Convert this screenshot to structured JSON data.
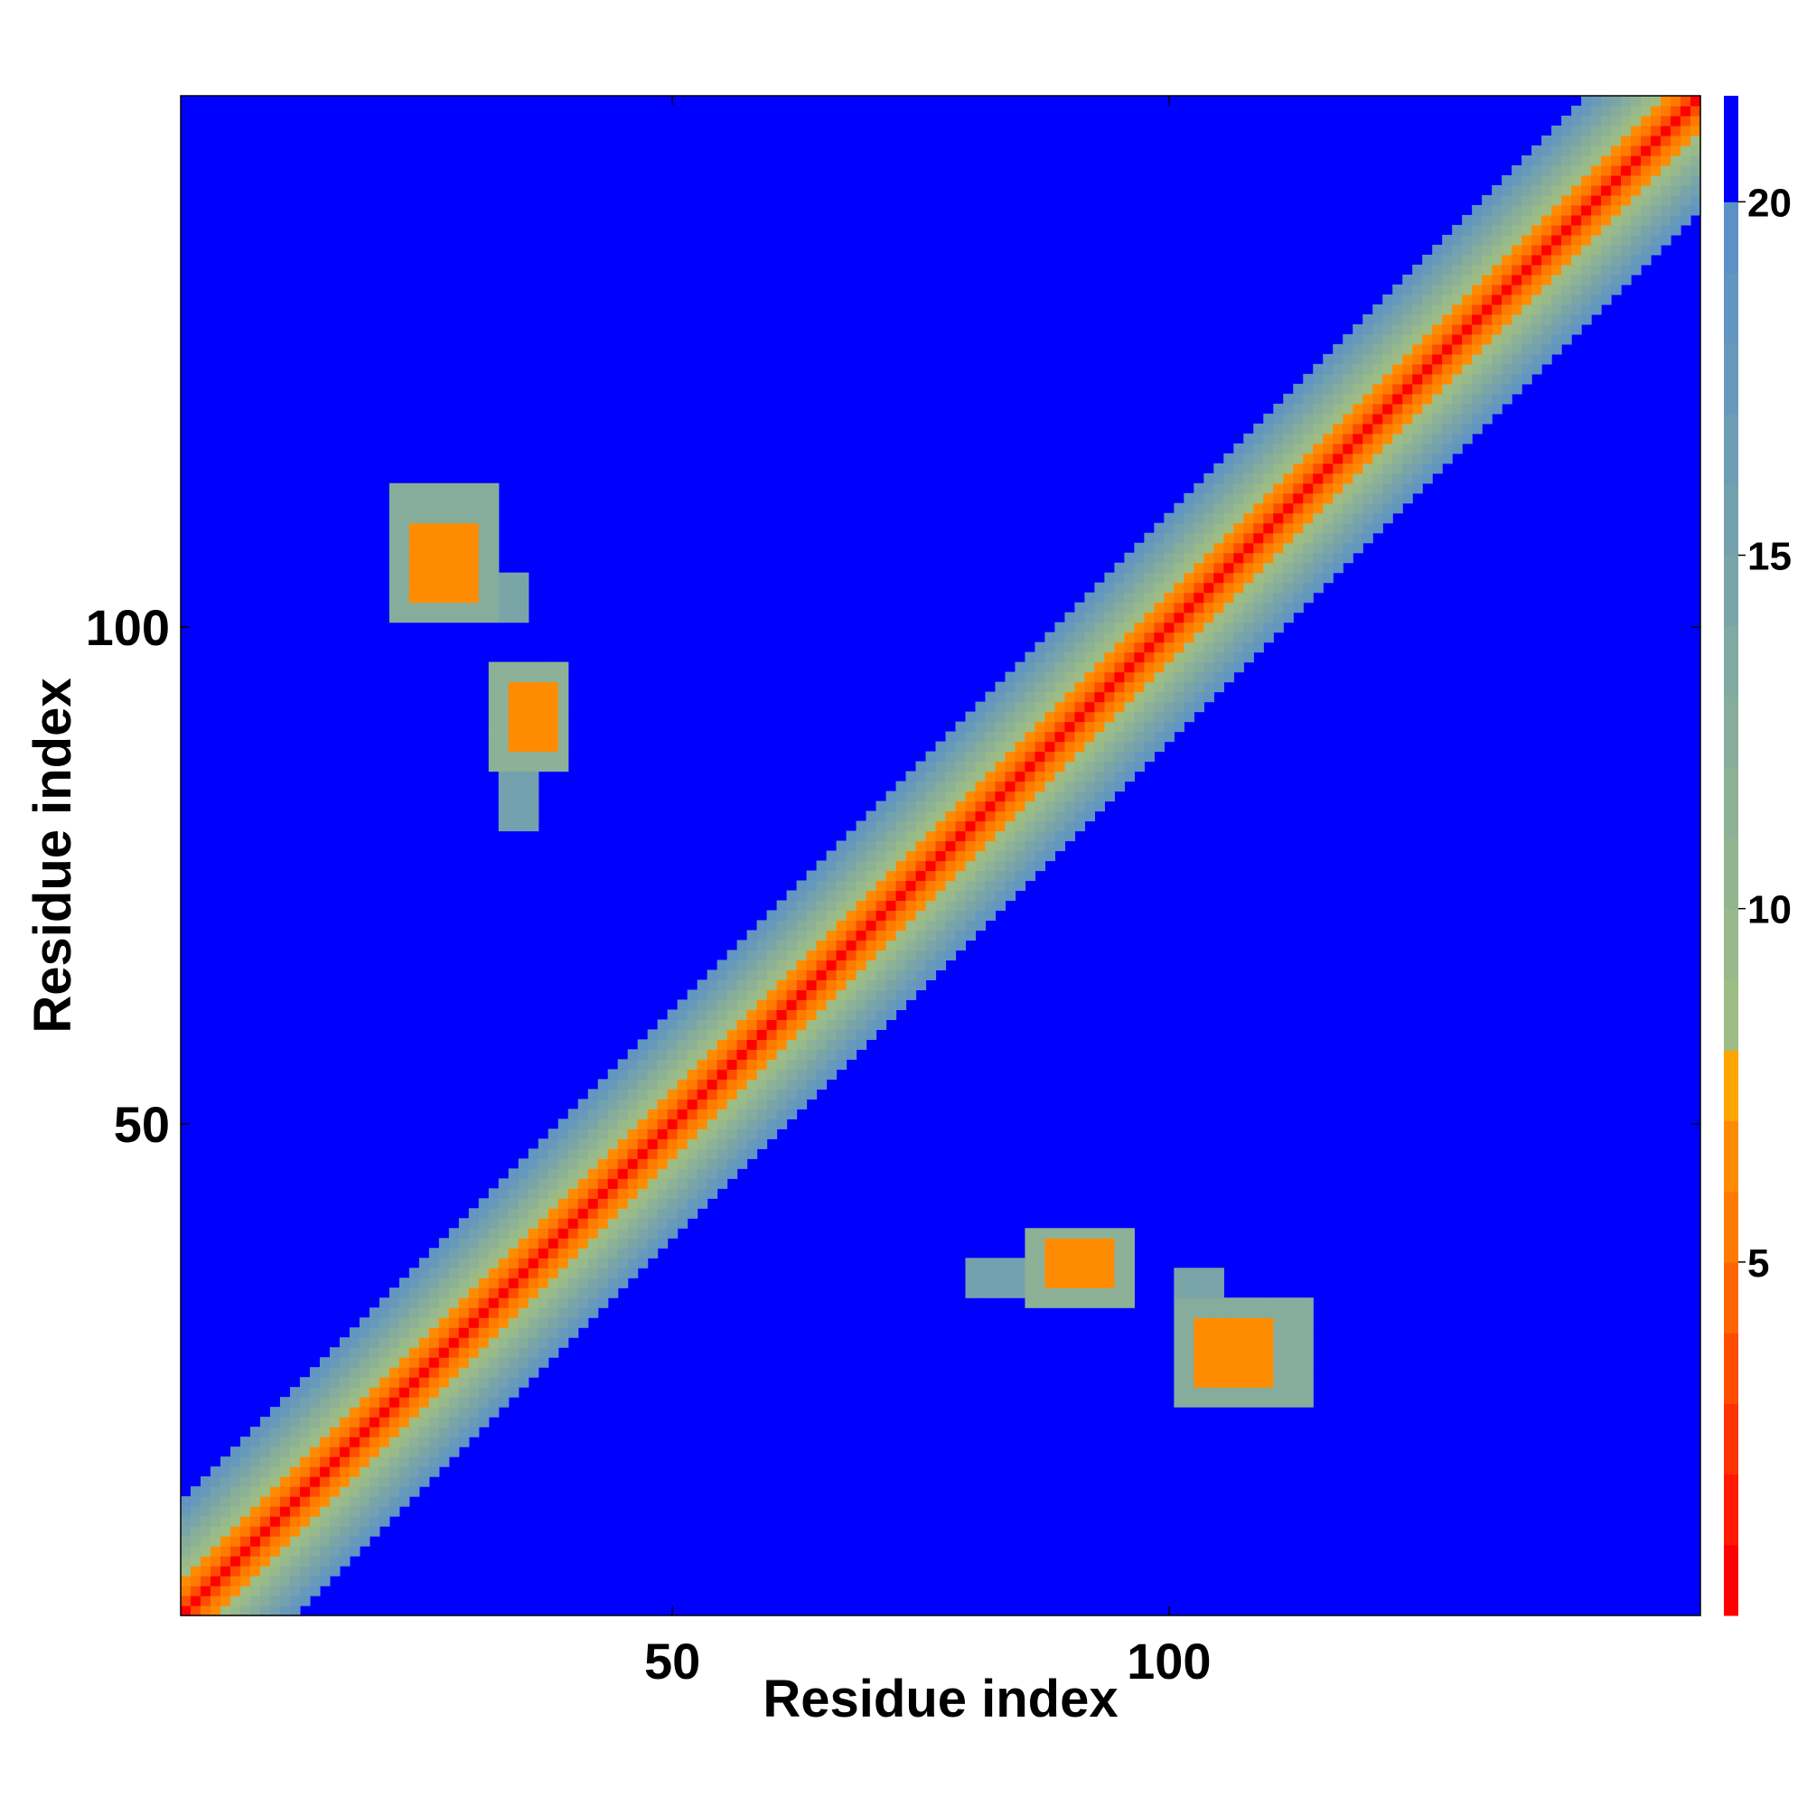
{
  "chart_data": {
    "type": "heatmap",
    "title": "",
    "xlabel": "Residue index",
    "ylabel": "Residue index",
    "n_residues": 153,
    "xlim": [
      1,
      153
    ],
    "ylim": [
      1,
      153
    ],
    "x_ticks": [
      50,
      100
    ],
    "y_ticks": [
      50,
      100
    ],
    "colorbar": {
      "ticks": [
        5,
        10,
        15,
        20
      ],
      "range": [
        0,
        21.5
      ],
      "levels": [
        {
          "max": 1,
          "color": "#ff0000"
        },
        {
          "max": 2,
          "color": "#ff1a00"
        },
        {
          "max": 3,
          "color": "#ff3300"
        },
        {
          "max": 4,
          "color": "#ff4d00"
        },
        {
          "max": 5,
          "color": "#ff6600"
        },
        {
          "max": 6,
          "color": "#ff7a00"
        },
        {
          "max": 7,
          "color": "#ff8c00"
        },
        {
          "max": 8,
          "color": "#ffa500"
        },
        {
          "max": 9,
          "color": "#9ebd84"
        },
        {
          "max": 10,
          "color": "#98b98a"
        },
        {
          "max": 11,
          "color": "#92b590"
        },
        {
          "max": 12,
          "color": "#8cb196"
        },
        {
          "max": 13,
          "color": "#86ad9c"
        },
        {
          "max": 14,
          "color": "#80a9a2"
        },
        {
          "max": 15,
          "color": "#7aa5a8"
        },
        {
          "max": 16,
          "color": "#74a1ae"
        },
        {
          "max": 17,
          "color": "#6e9db4"
        },
        {
          "max": 18,
          "color": "#6899ba"
        },
        {
          "max": 19,
          "color": "#6295c0"
        },
        {
          "max": 20,
          "color": "#5c91c6"
        },
        {
          "max": 21.5,
          "color": "#0000ff"
        }
      ]
    },
    "diagonal_bands": [
      {
        "offset": 0,
        "value": 1
      },
      {
        "offset": 1,
        "value": 3.8
      },
      {
        "offset": 2,
        "value": 5.5
      },
      {
        "offset": 3,
        "value": 6.5
      },
      {
        "offset": 4,
        "value": 8.5
      },
      {
        "offset": 5,
        "value": 10
      },
      {
        "offset": 6,
        "value": 11.5
      },
      {
        "offset": 7,
        "value": 13
      },
      {
        "offset": 8,
        "value": 14.5
      },
      {
        "offset": 9,
        "value": 16
      },
      {
        "offset": 10,
        "value": 17.5
      },
      {
        "offset": 11,
        "value": 19
      }
    ],
    "contact_blocks": [
      {
        "i_range": [
          22,
          32
        ],
        "j_range": [
          101,
          114
        ],
        "value": 13
      },
      {
        "i_range": [
          24,
          30
        ],
        "j_range": [
          103,
          110
        ],
        "value": 7
      },
      {
        "i_range": [
          22,
          35
        ],
        "j_range": [
          101,
          105
        ],
        "value": 15
      },
      {
        "i_range": [
          32,
          39
        ],
        "j_range": [
          86,
          96
        ],
        "value": 12
      },
      {
        "i_range": [
          34,
          38
        ],
        "j_range": [
          88,
          94
        ],
        "value": 7
      },
      {
        "i_range": [
          33,
          36
        ],
        "j_range": [
          80,
          86
        ],
        "value": 16
      }
    ],
    "background_value": 21.5
  }
}
